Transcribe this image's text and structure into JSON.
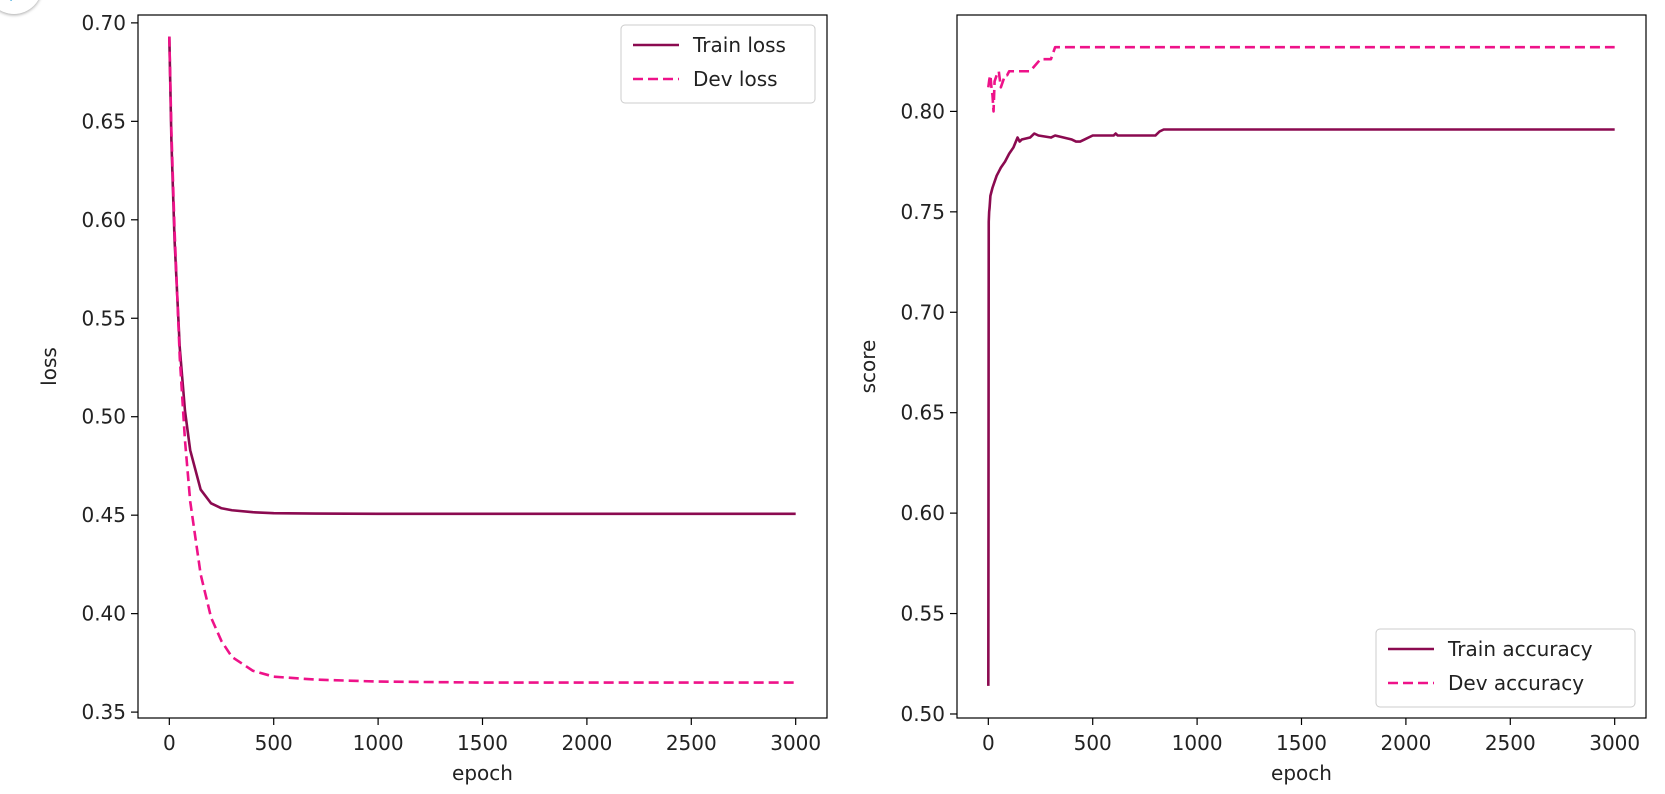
{
  "colors": {
    "train": "#8b0a50",
    "dev": "#ee1289",
    "axis": "#000000",
    "badge_icon": "#1e9bd7"
  },
  "corner_widget": {
    "icon": "app-icon"
  },
  "chart_data": [
    {
      "type": "line",
      "title": "",
      "xlabel": "epoch",
      "ylabel": "loss",
      "xlim": [
        -150,
        3150
      ],
      "ylim": [
        0.347,
        0.704
      ],
      "xticks": [
        0,
        500,
        1000,
        1500,
        2000,
        2500,
        3000
      ],
      "xtick_labels": [
        "0",
        "500",
        "1000",
        "1500",
        "2000",
        "2500",
        "3000"
      ],
      "yticks": [
        0.35,
        0.4,
        0.45,
        0.5,
        0.55,
        0.6,
        0.65,
        0.7
      ],
      "ytick_labels": [
        "0.35",
        "0.40",
        "0.45",
        "0.50",
        "0.55",
        "0.60",
        "0.65",
        "0.70"
      ],
      "grid": false,
      "legend_position": "top-right",
      "series": [
        {
          "name": "Train loss",
          "style": "solid",
          "color_key": "train",
          "x": [
            0,
            10,
            25,
            50,
            75,
            100,
            150,
            200,
            250,
            300,
            400,
            500,
            700,
            1000,
            2000,
            3000
          ],
          "y": [
            0.693,
            0.64,
            0.59,
            0.535,
            0.503,
            0.483,
            0.463,
            0.456,
            0.4535,
            0.4525,
            0.4515,
            0.451,
            0.4508,
            0.4507,
            0.4507,
            0.4507
          ]
        },
        {
          "name": "Dev loss",
          "style": "dashed",
          "color_key": "dev",
          "x": [
            0,
            10,
            25,
            50,
            75,
            100,
            150,
            200,
            250,
            300,
            400,
            500,
            700,
            1000,
            1500,
            2000,
            3000
          ],
          "y": [
            0.693,
            0.645,
            0.595,
            0.53,
            0.488,
            0.457,
            0.42,
            0.398,
            0.386,
            0.378,
            0.371,
            0.368,
            0.3665,
            0.3655,
            0.365,
            0.365,
            0.365
          ]
        }
      ]
    },
    {
      "type": "line",
      "title": "",
      "xlabel": "epoch",
      "ylabel": "score",
      "xlim": [
        -150,
        3150
      ],
      "ylim": [
        0.498,
        0.848
      ],
      "xticks": [
        0,
        500,
        1000,
        1500,
        2000,
        2500,
        3000
      ],
      "xtick_labels": [
        "0",
        "500",
        "1000",
        "1500",
        "2000",
        "2500",
        "3000"
      ],
      "yticks": [
        0.5,
        0.55,
        0.6,
        0.65,
        0.7,
        0.75,
        0.8
      ],
      "ytick_labels": [
        "0.50",
        "0.55",
        "0.60",
        "0.65",
        "0.70",
        "0.75",
        "0.80"
      ],
      "grid": false,
      "legend_position": "bottom-right",
      "series": [
        {
          "name": "Train accuracy",
          "style": "solid",
          "color_key": "train",
          "x": [
            0,
            2,
            4,
            6,
            8,
            10,
            15,
            20,
            30,
            40,
            50,
            60,
            80,
            100,
            120,
            140,
            150,
            160,
            200,
            220,
            240,
            300,
            320,
            400,
            420,
            440,
            460,
            500,
            600,
            610,
            620,
            800,
            820,
            840,
            3000
          ],
          "y": [
            0.514,
            0.745,
            0.75,
            0.752,
            0.755,
            0.758,
            0.76,
            0.762,
            0.765,
            0.768,
            0.77,
            0.772,
            0.775,
            0.779,
            0.782,
            0.787,
            0.785,
            0.786,
            0.787,
            0.789,
            0.788,
            0.787,
            0.788,
            0.786,
            0.785,
            0.785,
            0.786,
            0.788,
            0.788,
            0.789,
            0.788,
            0.788,
            0.79,
            0.791,
            0.791
          ]
        },
        {
          "name": "Dev accuracy",
          "style": "dashed",
          "color_key": "dev",
          "x": [
            0,
            5,
            10,
            15,
            20,
            25,
            30,
            40,
            50,
            60,
            70,
            80,
            90,
            100,
            150,
            200,
            250,
            300,
            320,
            3000
          ],
          "y": [
            0.812,
            0.816,
            0.818,
            0.812,
            0.808,
            0.8,
            0.815,
            0.818,
            0.82,
            0.812,
            0.815,
            0.818,
            0.818,
            0.82,
            0.82,
            0.82,
            0.826,
            0.826,
            0.832,
            0.832
          ]
        }
      ]
    }
  ]
}
